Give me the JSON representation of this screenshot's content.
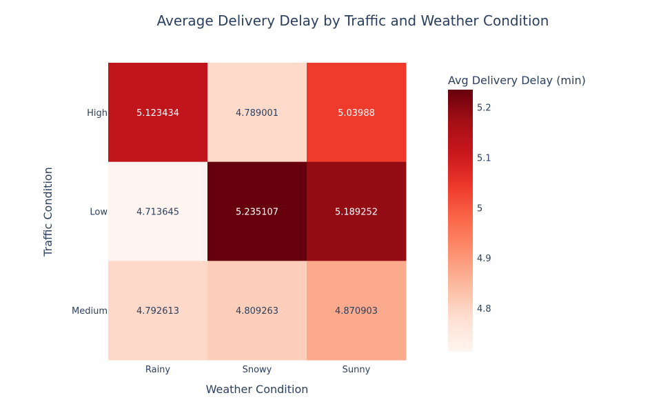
{
  "chart_data": {
    "type": "heatmap",
    "title": "Average Delivery Delay by Traffic and Weather Condition",
    "xlabel": "Weather Condition",
    "ylabel": "Traffic Condition",
    "x": [
      "Rainy",
      "Snowy",
      "Sunny"
    ],
    "y": [
      "High",
      "Low",
      "Medium"
    ],
    "z": [
      [
        5.123434,
        4.789001,
        5.03988
      ],
      [
        4.713645,
        5.235107,
        5.189252
      ],
      [
        4.792613,
        4.809263,
        4.870903
      ]
    ],
    "z_labels": [
      [
        "5.123434",
        "4.789001",
        "5.03988"
      ],
      [
        "4.713645",
        "5.235107",
        "5.189252"
      ],
      [
        "4.792613",
        "4.809263",
        "4.870903"
      ]
    ],
    "zmin": 4.713645,
    "zmax": 5.235107,
    "colorscale": "Reds",
    "colorscale_stops": [
      "#fff5f0",
      "#fee0d2",
      "#fcbba1",
      "#fc9272",
      "#fb6a4a",
      "#ef3b2c",
      "#cb181d",
      "#a50f15",
      "#67000d"
    ],
    "colorbar": {
      "title": "Avg Delivery Delay (min)",
      "ticks": [
        4.8,
        4.9,
        5,
        5.1,
        5.2
      ],
      "tick_labels": [
        "4.8",
        "4.9",
        "5",
        "5.1",
        "5.2"
      ]
    },
    "grid": false
  }
}
